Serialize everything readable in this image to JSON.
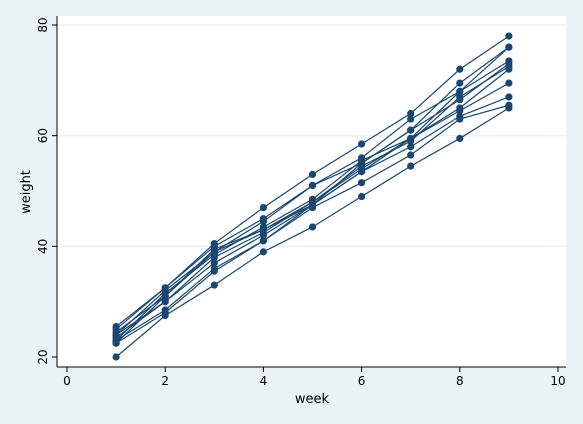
{
  "chart_data": {
    "type": "line",
    "title": "",
    "xlabel": "week",
    "ylabel": "weight",
    "xlim": [
      0,
      10
    ],
    "ylim": [
      20,
      80
    ],
    "xticks": [
      0,
      2,
      4,
      6,
      8,
      10
    ],
    "yticks": [
      20,
      40,
      60,
      80
    ],
    "grid": "horizontal",
    "legend": "none",
    "x": [
      1,
      2,
      3,
      4,
      5,
      6,
      7,
      8,
      9
    ],
    "series": [
      {
        "values": [
          20.0,
          27.5,
          33.0,
          39.0,
          43.5,
          49.0,
          54.5,
          59.5,
          65.0
        ]
      },
      {
        "values": [
          22.5,
          28.0,
          35.5,
          41.0,
          47.0,
          51.5,
          56.5,
          63.0,
          65.5
        ]
      },
      {
        "values": [
          23.0,
          28.5,
          36.0,
          41.0,
          47.5,
          53.5,
          58.0,
          63.5,
          67.0
        ]
      },
      {
        "values": [
          23.5,
          30.0,
          37.0,
          42.0,
          47.5,
          53.5,
          59.5,
          64.5,
          69.5
        ]
      },
      {
        "values": [
          24.0,
          30.0,
          38.0,
          42.5,
          48.0,
          54.0,
          59.5,
          65.0,
          72.0
        ]
      },
      {
        "values": [
          24.5,
          31.0,
          39.0,
          43.0,
          48.0,
          54.5,
          59.0,
          67.0,
          72.5
        ]
      },
      {
        "values": [
          22.5,
          31.0,
          39.5,
          43.0,
          47.5,
          55.0,
          61.0,
          66.5,
          73.0
        ]
      },
      {
        "values": [
          23.0,
          31.5,
          38.5,
          43.5,
          48.5,
          55.5,
          59.5,
          68.0,
          73.5
        ]
      },
      {
        "values": [
          24.0,
          32.0,
          39.0,
          44.5,
          51.0,
          55.0,
          61.0,
          69.5,
          76.0
        ]
      },
      {
        "values": [
          25.5,
          32.5,
          40.0,
          45.0,
          51.0,
          56.0,
          63.0,
          68.0,
          76.0
        ]
      },
      {
        "values": [
          25.0,
          32.5,
          40.5,
          47.0,
          53.0,
          58.5,
          64.0,
          72.0,
          78.0
        ]
      }
    ],
    "colors": {
      "line": "#1a476f",
      "grid": "#eaf2f3",
      "plot_bg": "#ffffff",
      "outer_bg": "#eaf2f3"
    }
  }
}
